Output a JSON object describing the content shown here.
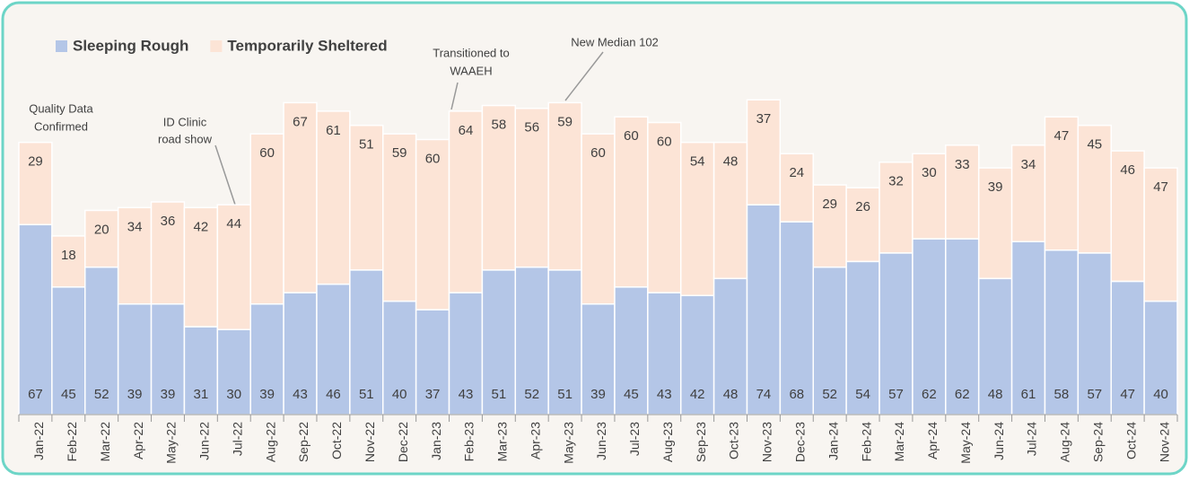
{
  "chart_data": {
    "type": "stacked_bar",
    "categories": [
      "Jan-22",
      "Feb-22",
      "Mar-22",
      "Apr-22",
      "May-22",
      "Jun-22",
      "Jul-22",
      "Aug-22",
      "Sep-22",
      "Oct-22",
      "Nov-22",
      "Dec-22",
      "Jan-23",
      "Feb-23",
      "Mar-23",
      "Apr-23",
      "May-23",
      "Jun-23",
      "Jul-23",
      "Aug-23",
      "Sep-23",
      "Oct-23",
      "Nov-23",
      "Dec-23",
      "Jan-24",
      "Feb-24",
      "Mar-24",
      "Apr-24",
      "May-24",
      "Jun-24",
      "Jul-24",
      "Aug-24",
      "Sep-24",
      "Oct-24",
      "Nov-24"
    ],
    "series": [
      {
        "name": "Sleeping Rough",
        "color": "#b4c6e7",
        "values": [
          67,
          45,
          52,
          39,
          39,
          31,
          30,
          39,
          43,
          46,
          51,
          40,
          37,
          43,
          51,
          52,
          51,
          39,
          45,
          43,
          42,
          48,
          74,
          68,
          52,
          54,
          57,
          62,
          62,
          48,
          61,
          58,
          57,
          47,
          40
        ]
      },
      {
        "name": "Temporarily Sheltered",
        "color": "#fce4d6",
        "values": [
          29,
          18,
          20,
          34,
          36,
          42,
          44,
          60,
          67,
          61,
          51,
          59,
          60,
          64,
          58,
          56,
          59,
          60,
          60,
          60,
          54,
          48,
          37,
          24,
          29,
          26,
          32,
          30,
          33,
          39,
          34,
          47,
          45,
          46,
          47
        ]
      }
    ],
    "annotations": [
      [
        "Quality Data",
        "Confirmed"
      ],
      [
        "ID Clinic",
        "road show"
      ],
      [
        "Transitioned to",
        "WAAEH"
      ],
      [
        "New Median 102"
      ]
    ]
  }
}
